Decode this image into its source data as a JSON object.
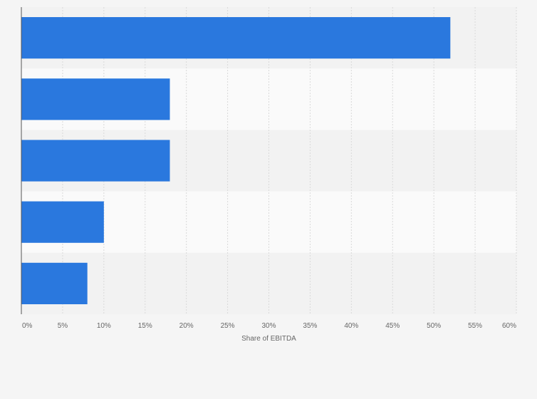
{
  "chart_data": {
    "type": "bar",
    "orientation": "horizontal",
    "title": "",
    "xlabel": "Share of EBITDA",
    "ylabel": "",
    "categories": [
      "",
      "",
      "",
      "",
      ""
    ],
    "values": [
      52,
      18,
      18,
      10,
      8
    ],
    "value_unit": "%",
    "xlim": [
      0,
      60
    ],
    "x_ticks": [
      0,
      5,
      10,
      15,
      20,
      25,
      30,
      35,
      40,
      45,
      50,
      55,
      60
    ],
    "x_tick_labels": [
      "0%",
      "5%",
      "10%",
      "15%",
      "20%",
      "25%",
      "30%",
      "35%",
      "40%",
      "45%",
      "50%",
      "55%",
      "60%"
    ],
    "grid": true,
    "legend": "none"
  },
  "colors": {
    "bar": "#2a78de",
    "background": "#f5f5f5",
    "band_light": "#fafafa",
    "band_dark": "#f2f2f2",
    "grid": "#d9d9d9",
    "axis": "#555555",
    "text": "#666666"
  }
}
